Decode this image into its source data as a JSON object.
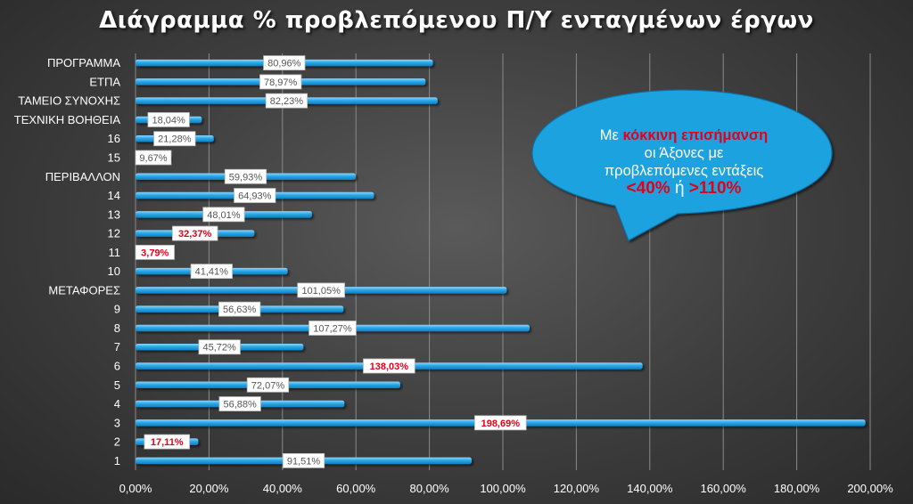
{
  "chart_data": {
    "type": "bar",
    "orientation": "horizontal",
    "title": "Διάγραμμα % προβλεπόμενου Π/Υ ενταγμένων έργων",
    "categories": [
      "ΠΡΟΓΡΑΜΜΑ",
      "ΕΤΠΑ",
      "ΤΑΜΕΙΟ ΣΥΝΟΧΗΣ",
      "ΤΕΧΝΙΚΗ ΒΟΗΘΕΙΑ",
      "16",
      "15",
      "ΠΕΡΙΒΑΛΛΟΝ",
      "14",
      "13",
      "12",
      "11",
      "10",
      "ΜΕΤΑΦΟΡΕΣ",
      "9",
      "8",
      "7",
      "6",
      "5",
      "4",
      "3",
      "2",
      "1"
    ],
    "values": [
      80.96,
      78.97,
      82.23,
      18.04,
      21.28,
      9.67,
      59.93,
      64.93,
      48.01,
      32.37,
      3.79,
      41.41,
      101.05,
      56.63,
      107.27,
      45.72,
      138.03,
      72.07,
      56.88,
      198.69,
      17.11,
      91.51
    ],
    "data_labels": [
      "80,96%",
      "78,97%",
      "82,23%",
      "18,04%",
      "21,28%",
      "9,67%",
      "59,93%",
      "64,93%",
      "48,01%",
      "32,37%",
      "3,79%",
      "41,41%",
      "101,05%",
      "56,63%",
      "107,27%",
      "45,72%",
      "138,03%",
      "72,07%",
      "56,88%",
      "198,69%",
      "17,11%",
      "91,51%"
    ],
    "highlighted": [
      false,
      false,
      false,
      false,
      false,
      false,
      false,
      false,
      false,
      true,
      true,
      false,
      false,
      false,
      false,
      false,
      true,
      false,
      false,
      true,
      true,
      false
    ],
    "xlim": [
      0,
      200
    ],
    "x_ticks": [
      0,
      20,
      40,
      60,
      80,
      100,
      120,
      140,
      160,
      180,
      200
    ],
    "x_tick_labels": [
      "0,00%",
      "20,00%",
      "40,00%",
      "60,00%",
      "80,00%",
      "100,00%",
      "120,00%",
      "140,00%",
      "160,00%",
      "180,00%",
      "200,00%"
    ],
    "grid": "vertical",
    "legend": "none",
    "colors": {
      "bar": "#1f9fe0",
      "highlight_text": "#e3001b",
      "label_box": "#ffffff",
      "gridline": "#8a8a8a"
    }
  },
  "callout": {
    "line1_prefix": "Με ",
    "line1_highlight": "κόκκινη επισήμανση",
    "line2": "οι Άξονες με",
    "line3": "προβλεπόμενες εντάξεις",
    "line4_a": "<40%",
    "line4_b": " ή ",
    "line4_c": ">110%",
    "fill_color": "#1da3df"
  }
}
